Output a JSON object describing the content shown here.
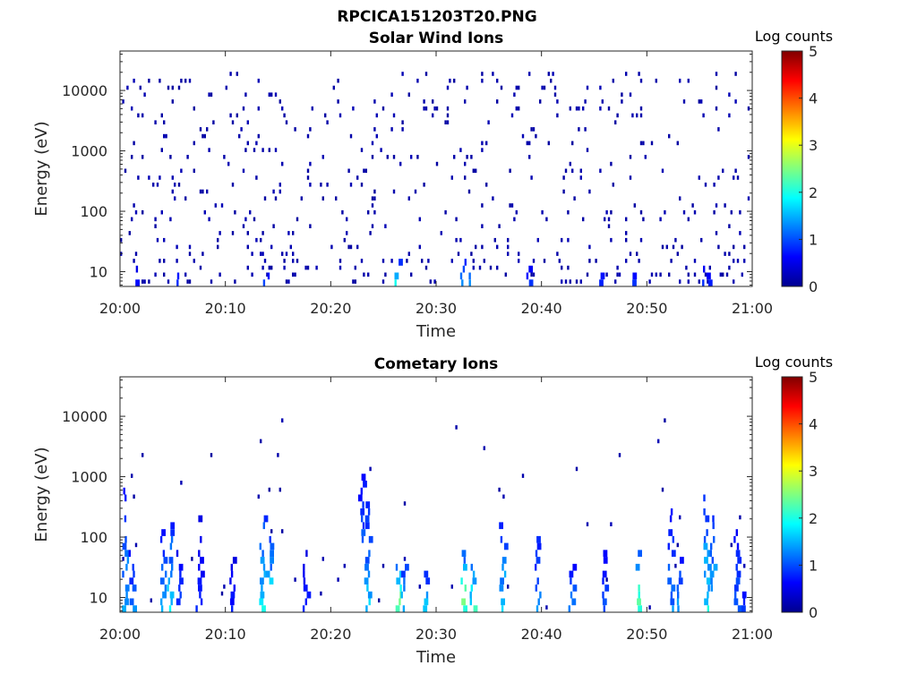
{
  "figure": {
    "title": "RPCICA151203T20.PNG"
  },
  "chart_data": [
    {
      "type": "heatmap",
      "title": "Solar Wind Ions",
      "xlabel": "Time",
      "ylabel": "Energy (eV)",
      "x_range_minutes": [
        0,
        60
      ],
      "xtick_labels": [
        "20:00",
        "20:10",
        "20:20",
        "20:30",
        "20:40",
        "20:50",
        "21:00"
      ],
      "y_scale": "log",
      "ylim": [
        5.7,
        45000
      ],
      "ytick_values": [
        10,
        100,
        1000,
        10000
      ],
      "ytick_labels": [
        "10",
        "100",
        "1000",
        "10000"
      ],
      "colorbar": {
        "title": "Log counts",
        "min": 0,
        "max": 5,
        "tick_labels": [
          "0",
          "1",
          "2",
          "3",
          "4",
          "5"
        ],
        "colormap": "jet"
      },
      "noise": {
        "energy_max": 20000,
        "density": 0.055,
        "seed": 7
      },
      "features": [
        {
          "t": 26.2,
          "e_lo": 6,
          "e_hi": 14,
          "level": 1.6
        },
        {
          "t": 32.5,
          "e_lo": 6,
          "e_hi": 14,
          "level": 1.1
        },
        {
          "t": 33.2,
          "e_lo": 6,
          "e_hi": 12,
          "level": 1.0
        },
        {
          "t": 13.8,
          "e_lo": 6,
          "e_hi": 12,
          "level": 0.6
        },
        {
          "t": 38.8,
          "e_lo": 6,
          "e_hi": 12,
          "level": 0.6
        },
        {
          "t": 1.3,
          "e_lo": 6,
          "e_hi": 12,
          "level": 0.5
        },
        {
          "t": 55.3,
          "e_lo": 6,
          "e_hi": 12,
          "level": 0.5
        },
        {
          "t": 5.4,
          "e_lo": 6,
          "e_hi": 9,
          "level": 0.5
        },
        {
          "t": 45.6,
          "e_lo": 6,
          "e_hi": 9,
          "level": 0.5
        },
        {
          "t": 48.6,
          "e_lo": 6,
          "e_hi": 10,
          "level": 0.5
        },
        {
          "t": 55.6,
          "e_lo": 6,
          "e_hi": 9,
          "level": 0.5
        }
      ]
    },
    {
      "type": "heatmap",
      "title": "Cometary Ions",
      "xlabel": "Time",
      "ylabel": "Energy (eV)",
      "x_range_minutes": [
        0,
        60
      ],
      "xtick_labels": [
        "20:00",
        "20:10",
        "20:20",
        "20:30",
        "20:40",
        "20:50",
        "21:00"
      ],
      "y_scale": "log",
      "ylim": [
        5.7,
        45000
      ],
      "ytick_values": [
        10,
        100,
        1000,
        10000
      ],
      "ytick_labels": [
        "10",
        "100",
        "1000",
        "10000"
      ],
      "colorbar": {
        "title": "Log counts",
        "min": 0,
        "max": 5,
        "tick_labels": [
          "0",
          "1",
          "2",
          "3",
          "4",
          "5"
        ],
        "colormap": "jet"
      },
      "noise": {
        "energy_max": 10000,
        "density": 0.006,
        "seed": 21
      },
      "features": [
        {
          "t": 0.4,
          "e_lo": 6,
          "e_hi": 600,
          "level": 1.3
        },
        {
          "t": 1.0,
          "e_lo": 6,
          "e_hi": 70,
          "level": 1.0
        },
        {
          "t": 4.0,
          "e_lo": 6,
          "e_hi": 150,
          "level": 1.2
        },
        {
          "t": 4.6,
          "e_lo": 6,
          "e_hi": 200,
          "level": 1.5
        },
        {
          "t": 5.4,
          "e_lo": 8,
          "e_hi": 60,
          "level": 0.7
        },
        {
          "t": 7.4,
          "e_lo": 6,
          "e_hi": 200,
          "level": 0.5
        },
        {
          "t": 10.6,
          "e_lo": 6,
          "e_hi": 40,
          "level": 0.5
        },
        {
          "t": 13.4,
          "e_lo": 6,
          "e_hi": 250,
          "level": 1.6
        },
        {
          "t": 14.0,
          "e_lo": 20,
          "e_hi": 130,
          "level": 1.2
        },
        {
          "t": 17.5,
          "e_lo": 6,
          "e_hi": 60,
          "level": 0.5
        },
        {
          "t": 22.8,
          "e_lo": 80,
          "e_hi": 1300,
          "level": 0.8
        },
        {
          "t": 23.4,
          "e_lo": 6,
          "e_hi": 350,
          "level": 1.4
        },
        {
          "t": 26.4,
          "e_lo": 6,
          "e_hi": 35,
          "level": 2.4
        },
        {
          "t": 26.9,
          "e_lo": 6,
          "e_hi": 30,
          "level": 1.6
        },
        {
          "t": 28.8,
          "e_lo": 6,
          "e_hi": 30,
          "level": 1.3
        },
        {
          "t": 32.5,
          "e_lo": 6,
          "e_hi": 50,
          "level": 2.5
        },
        {
          "t": 33.3,
          "e_lo": 6,
          "e_hi": 45,
          "level": 2.0
        },
        {
          "t": 36.2,
          "e_lo": 6,
          "e_hi": 250,
          "level": 1.4
        },
        {
          "t": 39.6,
          "e_lo": 6,
          "e_hi": 200,
          "level": 1.0
        },
        {
          "t": 42.8,
          "e_lo": 6,
          "e_hi": 35,
          "level": 1.0
        },
        {
          "t": 46.0,
          "e_lo": 6,
          "e_hi": 80,
          "level": 0.8
        },
        {
          "t": 49.1,
          "e_lo": 6,
          "e_hi": 60,
          "level": 2.2
        },
        {
          "t": 52.2,
          "e_lo": 6,
          "e_hi": 300,
          "level": 1.0
        },
        {
          "t": 52.9,
          "e_lo": 6,
          "e_hi": 40,
          "level": 1.2
        },
        {
          "t": 55.6,
          "e_lo": 6,
          "e_hi": 600,
          "level": 1.6
        },
        {
          "t": 56.2,
          "e_lo": 15,
          "e_hi": 200,
          "level": 1.3
        },
        {
          "t": 58.4,
          "e_lo": 6,
          "e_hi": 200,
          "level": 0.8
        },
        {
          "t": 58.9,
          "e_lo": 6,
          "e_hi": 12,
          "level": 0.7
        }
      ]
    }
  ]
}
